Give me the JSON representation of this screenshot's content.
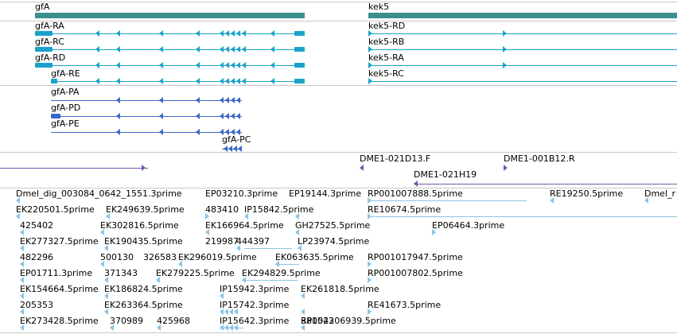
{
  "colors": {
    "gene": "#3a8f8f",
    "transcript_cyan": "#1aa3c9",
    "transcript_blue": "#3b68c8",
    "clone": "#7a55b0",
    "est": "#8cc3e6",
    "divider": "#c8c8c8"
  },
  "genes": [
    {
      "label": "gfA"
    },
    {
      "label": "kek5"
    }
  ],
  "transcripts_cyan": [
    {
      "label": "gfA-RA"
    },
    {
      "label": "gfA-RC"
    },
    {
      "label": "gfA-RD"
    },
    {
      "label": "gfA-RE"
    },
    {
      "label": "kek5-RD"
    },
    {
      "label": "kek5-RB"
    },
    {
      "label": "kek5-RA"
    },
    {
      "label": "kek5-RC"
    }
  ],
  "transcripts_blue": [
    {
      "label": "gfA-PA"
    },
    {
      "label": "gfA-PD"
    },
    {
      "label": "gfA-PE"
    },
    {
      "label": "gfA-PC"
    }
  ],
  "clones": [
    {
      "label": "DME1-021D13.F"
    },
    {
      "label": "DME1-001B12.R"
    },
    {
      "label": "DME1-021H19"
    }
  ],
  "ests": [
    {
      "label": "Dmel_dig_003084_0642_1551.3prime"
    },
    {
      "label": "EP03210.3prime"
    },
    {
      "label": "EP19144.3prime"
    },
    {
      "label": "RP001007888.5prime"
    },
    {
      "label": "RE19250.5prime"
    },
    {
      "label": "Dmel_r"
    },
    {
      "label": "EK220501.5prime"
    },
    {
      "label": "EK249639.5prime"
    },
    {
      "label": "483410"
    },
    {
      "label": "IP15842.5prime"
    },
    {
      "label": "RE10674.5prime"
    },
    {
      "label": "425402"
    },
    {
      "label": "EK302816.5prime"
    },
    {
      "label": "EK166964.5prime"
    },
    {
      "label": "GH27525.5prime"
    },
    {
      "label": "EP06464.3prime"
    },
    {
      "label": "EK277327.5prime"
    },
    {
      "label": "EK190435.5prime"
    },
    {
      "label": "219987"
    },
    {
      "label": "444397"
    },
    {
      "label": "LP23974.5prime"
    },
    {
      "label": "482296"
    },
    {
      "label": "500130"
    },
    {
      "label": "326583"
    },
    {
      "label": "EK296019.5prime"
    },
    {
      "label": "EK063635.5prime"
    },
    {
      "label": "RP001017947.5prime"
    },
    {
      "label": "EP01711.3prime"
    },
    {
      "label": "371343"
    },
    {
      "label": "EK279225.5prime"
    },
    {
      "label": "EK294829.5prime"
    },
    {
      "label": "RP001007802.5prime"
    },
    {
      "label": "EK154664.5prime"
    },
    {
      "label": "EK186824.5prime"
    },
    {
      "label": "EK261818.5prime"
    },
    {
      "label": "205353"
    },
    {
      "label": "EK263364.5prime"
    },
    {
      "label": "IP15942.3prime"
    },
    {
      "label": "IP15742.3prime"
    },
    {
      "label": "381523"
    },
    {
      "label": "RE41673.5prime"
    },
    {
      "label": "EK273428.5prime"
    },
    {
      "label": "370989"
    },
    {
      "label": "425968"
    },
    {
      "label": "IP15642.3prime"
    },
    {
      "label": "RP004206939.5prime"
    }
  ]
}
